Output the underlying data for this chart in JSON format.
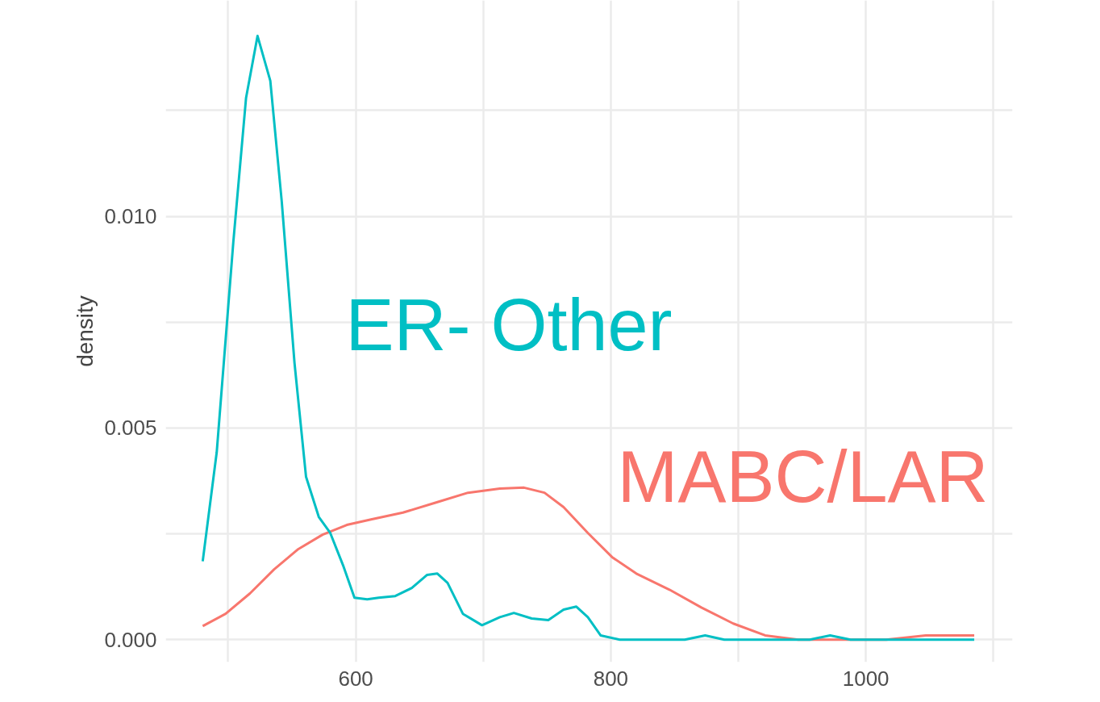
{
  "chart_data": {
    "type": "line",
    "ylabel": "density",
    "xlim": [
      451,
      1115
    ],
    "ylim": [
      -0.00053,
      0.0151
    ],
    "xticks": [
      {
        "value": 500,
        "label": null
      },
      600,
      {
        "value": 700,
        "label": null
      },
      800,
      {
        "value": 900,
        "label": null
      },
      1000,
      {
        "value": 1100,
        "label": null
      }
    ],
    "yticks": [
      {
        "value": 0,
        "label": "0.000"
      },
      {
        "value": 0.0025,
        "label": null
      },
      {
        "value": 0.005,
        "label": "0.005"
      },
      {
        "value": 0.0075,
        "label": null
      },
      {
        "value": 0.01,
        "label": "0.010"
      },
      {
        "value": 0.0125,
        "label": null
      }
    ],
    "grid": true,
    "marker": "none",
    "line_style": "solid",
    "series": [
      {
        "name": "MABC/LAR",
        "color": "#f8766d",
        "x": [
          480,
          498,
          517,
          536,
          555,
          574,
          593,
          612,
          637,
          663,
          688,
          713,
          732,
          748,
          763,
          782,
          801,
          820,
          846,
          871,
          896,
          921,
          947,
          985,
          1016,
          1047,
          1085
        ],
        "values": [
          0.00032,
          0.00061,
          0.00109,
          0.00166,
          0.00214,
          0.00248,
          0.00271,
          0.00284,
          0.003,
          0.00324,
          0.00347,
          0.00357,
          0.00359,
          0.00347,
          0.00313,
          0.00252,
          0.00195,
          0.00156,
          0.00118,
          0.00076,
          0.00038,
          0.0001,
          0,
          0,
          0,
          0.0001,
          0.0001
        ]
      },
      {
        "name": "ER- Other",
        "color": "#00bfc4",
        "x": [
          480,
          491,
          504,
          514,
          523,
          533,
          542,
          552,
          561,
          571,
          580,
          590,
          599,
          609,
          618,
          631,
          644,
          656,
          664,
          672,
          684,
          699,
          713,
          724,
          738,
          751,
          763,
          773,
          782,
          792,
          807,
          839,
          858,
          874,
          889,
          940,
          956,
          972,
          988,
          1004,
          1085
        ],
        "values": [
          0.00185,
          0.00443,
          0.00939,
          0.0128,
          0.01426,
          0.0132,
          0.01034,
          0.00653,
          0.00385,
          0.0029,
          0.00252,
          0.00176,
          0.00099,
          0.00095,
          0.00099,
          0.00103,
          0.00122,
          0.00153,
          0.00156,
          0.00134,
          0.00061,
          0.00034,
          0.00053,
          0.00063,
          0.0005,
          0.00046,
          0.00071,
          0.00078,
          0.00053,
          0.0001,
          0,
          0,
          0,
          0.0001,
          0,
          0,
          0,
          0.0001,
          0,
          0,
          0
        ]
      }
    ]
  }
}
